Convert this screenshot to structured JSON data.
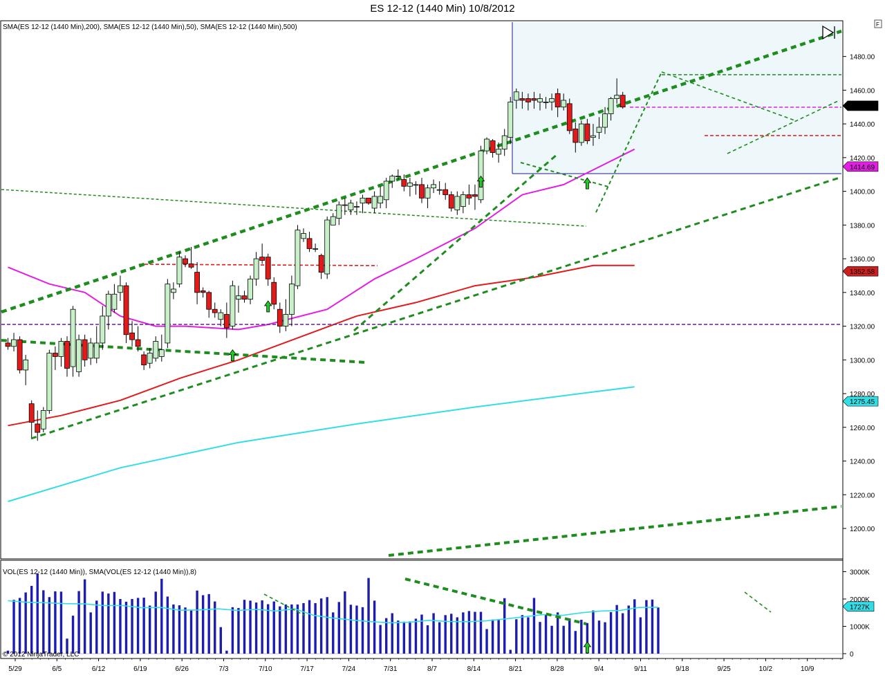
{
  "window": {
    "title": "ES 12-12 (1440 Min)  10/8/2012",
    "f_button": "F",
    "copyright": "© 2012 NinjaTrader, LLC"
  },
  "chart_data": [
    {
      "type": "candlestick",
      "legend_text": "SMA(ES 12-12 (1440 Min),200), SMA(ES 12-12 (1440 Min),50), SMA(ES 12-12 (1440 Min),500)",
      "ylim": [
        1184,
        1496
      ],
      "y_ticks": [
        1200,
        1220,
        1240,
        1260,
        1280,
        1300,
        1320,
        1340,
        1360,
        1380,
        1400,
        1420,
        1440,
        1460,
        1480
      ],
      "y_tick_labels": [
        "1200.00",
        "1220.00",
        "1240.00",
        "1260.00",
        "1280.00",
        "1300.00",
        "1320.00",
        "1340.00",
        "1360.00",
        "1380.00",
        "1400.00",
        "1420.00",
        "1440.00",
        "1460.00",
        "1480.00"
      ],
      "x_labels": [
        "5/29",
        "6/5",
        "6/12",
        "6/19",
        "6/26",
        "7/3",
        "7/10",
        "7/17",
        "7/24",
        "7/31",
        "8/7",
        "8/14",
        "8/21",
        "8/28",
        "9/4",
        "9/11",
        "9/18",
        "9/25",
        "10/2",
        "10/9"
      ],
      "candles": [
        [
          1310,
          1313,
          1306,
          1308
        ],
        [
          1308,
          1316,
          1305,
          1312
        ],
        [
          1312,
          1314,
          1292,
          1294
        ],
        [
          1294,
          1303,
          1285,
          1300
        ],
        [
          1274,
          1276,
          1254,
          1263
        ],
        [
          1262,
          1270,
          1252,
          1257
        ],
        [
          1259,
          1272,
          1257,
          1270
        ],
        [
          1270,
          1306,
          1268,
          1304
        ],
        [
          1304,
          1308,
          1294,
          1302
        ],
        [
          1302,
          1313,
          1296,
          1311
        ],
        [
          1311,
          1314,
          1290,
          1295
        ],
        [
          1296,
          1332,
          1290,
          1330
        ],
        [
          1293,
          1315,
          1290,
          1312
        ],
        [
          1312,
          1315,
          1296,
          1300
        ],
        [
          1301,
          1313,
          1297,
          1310
        ],
        [
          1301,
          1320,
          1298,
          1310
        ],
        [
          1310,
          1332,
          1306,
          1326
        ],
        [
          1326,
          1341,
          1318,
          1339
        ],
        [
          1330,
          1345,
          1328,
          1339
        ],
        [
          1340,
          1350,
          1335,
          1344
        ],
        [
          1344,
          1346,
          1310,
          1315
        ],
        [
          1316,
          1323,
          1308,
          1312
        ],
        [
          1312,
          1320,
          1305,
          1308
        ],
        [
          1303,
          1305,
          1294,
          1297
        ],
        [
          1298,
          1307,
          1295,
          1304
        ],
        [
          1301,
          1314,
          1299,
          1311
        ],
        [
          1302,
          1315,
          1299,
          1306
        ],
        [
          1310,
          1348,
          1307,
          1345
        ],
        [
          1340,
          1346,
          1336,
          1342
        ],
        [
          1345,
          1364,
          1343,
          1361
        ],
        [
          1360,
          1362,
          1355,
          1357
        ],
        [
          1357,
          1367,
          1354,
          1355
        ],
        [
          1352,
          1358,
          1333,
          1340
        ],
        [
          1341,
          1343,
          1337,
          1340
        ],
        [
          1340,
          1341,
          1325,
          1330
        ],
        [
          1330,
          1334,
          1325,
          1328
        ],
        [
          1324,
          1330,
          1320,
          1328
        ],
        [
          1327,
          1334,
          1313,
          1319
        ],
        [
          1320,
          1347,
          1318,
          1344
        ],
        [
          1336,
          1344,
          1328,
          1338
        ],
        [
          1338,
          1341,
          1334,
          1336
        ],
        [
          1336,
          1350,
          1333,
          1348
        ],
        [
          1348,
          1364,
          1344,
          1360
        ],
        [
          1361,
          1369,
          1357,
          1359
        ],
        [
          1361,
          1363,
          1344,
          1348
        ],
        [
          1346,
          1349,
          1330,
          1333
        ],
        [
          1330,
          1334,
          1316,
          1320
        ],
        [
          1320,
          1336,
          1317,
          1327
        ],
        [
          1327,
          1350,
          1320,
          1345
        ],
        [
          1344,
          1380,
          1342,
          1377
        ],
        [
          1372,
          1378,
          1370,
          1375
        ],
        [
          1372,
          1376,
          1364,
          1366
        ],
        [
          1366,
          1369,
          1364,
          1366
        ],
        [
          1362,
          1363,
          1348,
          1352
        ],
        [
          1351,
          1385,
          1348,
          1383
        ],
        [
          1380,
          1387,
          1381,
          1385
        ],
        [
          1384,
          1394,
          1380,
          1392
        ],
        [
          1392,
          1396,
          1386,
          1392
        ],
        [
          1389,
          1395,
          1386,
          1393
        ],
        [
          1391,
          1394,
          1386,
          1391
        ],
        [
          1393,
          1398,
          1387,
          1396
        ],
        [
          1396,
          1396,
          1392,
          1393
        ],
        [
          1390,
          1400,
          1387,
          1397
        ],
        [
          1393,
          1403,
          1390,
          1397
        ],
        [
          1395,
          1408,
          1390,
          1406
        ],
        [
          1406,
          1410,
          1402,
          1409
        ],
        [
          1409,
          1413,
          1407,
          1409
        ],
        [
          1407,
          1410,
          1400,
          1403
        ],
        [
          1403,
          1408,
          1397,
          1405
        ],
        [
          1404,
          1406,
          1398,
          1404
        ],
        [
          1404,
          1408,
          1393,
          1396
        ],
        [
          1396,
          1404,
          1390,
          1402
        ],
        [
          1402,
          1407,
          1399,
          1404
        ],
        [
          1401,
          1406,
          1398,
          1401
        ],
        [
          1401,
          1405,
          1395,
          1398
        ],
        [
          1398,
          1400,
          1388,
          1390
        ],
        [
          1389,
          1400,
          1386,
          1397
        ],
        [
          1391,
          1400,
          1387,
          1398
        ],
        [
          1398,
          1404,
          1392,
          1396
        ],
        [
          1398,
          1404,
          1389,
          1397
        ],
        [
          1395,
          1427,
          1393,
          1424
        ],
        [
          1424,
          1432,
          1422,
          1431
        ],
        [
          1430,
          1431,
          1420,
          1423
        ],
        [
          1422,
          1429,
          1417,
          1425
        ],
        [
          1425,
          1437,
          1421,
          1433
        ],
        [
          1432,
          1456,
          1428,
          1453
        ],
        [
          1454,
          1461,
          1449,
          1459
        ],
        [
          1455,
          1459,
          1449,
          1454
        ],
        [
          1455,
          1458,
          1448,
          1453
        ],
        [
          1455,
          1459,
          1449,
          1454
        ],
        [
          1453,
          1458,
          1448,
          1455
        ],
        [
          1453,
          1456,
          1449,
          1453
        ],
        [
          1453,
          1458,
          1448,
          1455
        ],
        [
          1458,
          1461,
          1444,
          1450
        ],
        [
          1450,
          1458,
          1448,
          1454
        ],
        [
          1452,
          1455,
          1434,
          1436
        ],
        [
          1437,
          1441,
          1423,
          1429
        ],
        [
          1429,
          1442,
          1427,
          1440
        ],
        [
          1440,
          1443,
          1428,
          1430
        ],
        [
          1432,
          1440,
          1427,
          1433
        ],
        [
          1435,
          1444,
          1431,
          1438
        ],
        [
          1438,
          1450,
          1434,
          1446
        ],
        [
          1446,
          1456,
          1442,
          1455
        ],
        [
          1455,
          1467,
          1452,
          1457
        ],
        [
          1457,
          1459,
          1449,
          1450
        ]
      ],
      "series": [
        {
          "name": "SMA(ES 12-12 (1440 Min),200)",
          "color": "#e31a1a",
          "x": [
            1,
            10,
            20,
            30,
            40,
            50,
            60,
            70,
            80,
            90,
            100,
            107
          ],
          "values": [
            1261,
            1267,
            1276,
            1289,
            1300,
            1313,
            1326,
            1334,
            1344,
            1349,
            1356,
            1356
          ]
        },
        {
          "name": "SMA(ES 12-12 (1440 Min),50)",
          "color": "#e31ee3",
          "x": [
            1,
            8,
            14,
            20,
            26,
            31,
            40,
            45,
            55,
            63,
            70,
            80,
            88,
            95,
            107
          ],
          "values": [
            1355,
            1345,
            1340,
            1326,
            1320,
            1320,
            1318,
            1321,
            1330,
            1348,
            1360,
            1378,
            1398,
            1404,
            1425
          ]
        },
        {
          "name": "SMA(ES 12-12 (1440 Min),500)",
          "color": "#33dde6",
          "x": [
            1,
            20,
            40,
            60,
            80,
            100,
            107
          ],
          "values": [
            1216,
            1236,
            1251,
            1262,
            1272,
            1281,
            1284
          ]
        }
      ],
      "price_markers": [
        {
          "value": "1450.75",
          "price": 1450.75,
          "bg": "#000000",
          "fg": "#ffffff"
        },
        {
          "value": "1414.69",
          "price": 1414.69,
          "bg": "#e31ee3",
          "fg": "#ffffff"
        },
        {
          "value": "1352.58",
          "price": 1352.58,
          "bg": "#cc1f1f",
          "fg": "#ffffff"
        },
        {
          "value": "1275.45",
          "price": 1275.45,
          "bg": "#33dde6",
          "fg": "#000000"
        }
      ],
      "arrows": [
        {
          "x": 39,
          "price": 1306
        },
        {
          "x": 45,
          "price": 1335
        },
        {
          "x": 81,
          "price": 1409
        },
        {
          "x": 99,
          "price": 1408
        }
      ],
      "colors": {
        "up": "#c8f0c8",
        "down": "#e31a1a",
        "outline": "#000000",
        "trendline": "#1e8c1e"
      }
    },
    {
      "type": "bar",
      "legend_text": "VOL(ES 12-12 (1440 Min)), SMA(VOL(ES 12-12 (1440 Min)),8)",
      "ylim": [
        0,
        3050
      ],
      "y_ticks": [
        0,
        1000,
        2000,
        3000
      ],
      "y_tick_labels": [
        "0",
        "1000K",
        "2000K",
        "3000K"
      ],
      "values": [
        110,
        1970,
        2040,
        2240,
        2480,
        2940,
        2320,
        2070,
        2280,
        2270,
        550,
        1390,
        2290,
        2720,
        1510,
        1940,
        2270,
        2200,
        2260,
        2000,
        1900,
        2000,
        2040,
        2050,
        1760,
        2270,
        2740,
        2090,
        1800,
        1770,
        1690,
        1580,
        2310,
        2140,
        2180,
        1910,
        970,
        110,
        1700,
        1670,
        1970,
        1940,
        1870,
        1950,
        1810,
        1910,
        1730,
        1800,
        1800,
        1800,
        1850,
        1960,
        1850,
        2020,
        2070,
        1510,
        1890,
        2280,
        1790,
        1760,
        1700,
        2770,
        1940,
        1050,
        1300,
        1480,
        1210,
        1170,
        1180,
        1280,
        1430,
        1040,
        1480,
        1150,
        1410,
        1460,
        1330,
        1510,
        1560,
        1530,
        1530,
        900,
        1250,
        1230,
        2030,
        140,
        1260,
        1410,
        1330,
        2040,
        1160,
        1430,
        1020,
        1510,
        1020,
        1290,
        830,
        1240,
        1120,
        1580,
        1210,
        1150,
        1520,
        1780,
        1480,
        1760,
        1990,
        1330,
        1960,
        1980,
        1690
      ],
      "sma": [
        1940,
        1880,
        1860,
        1830,
        1820,
        1760,
        1760,
        1680,
        1690,
        1590,
        1600,
        1640,
        1580,
        1620,
        1560,
        1640,
        1400,
        1300,
        1230,
        1170,
        1130,
        1150,
        1220,
        1180,
        1170,
        1200,
        1270,
        1350,
        1430,
        1400,
        1500,
        1560,
        1580,
        1690,
        1700
      ],
      "price_marker": {
        "value": "1727K",
        "volume": 1727,
        "bg": "#33dde6",
        "fg": "#000000"
      },
      "arrow": {
        "x": 99,
        "volume": 430
      },
      "colors": {
        "bar": "#1c1cb0",
        "sma": "#33dde6"
      }
    }
  ]
}
